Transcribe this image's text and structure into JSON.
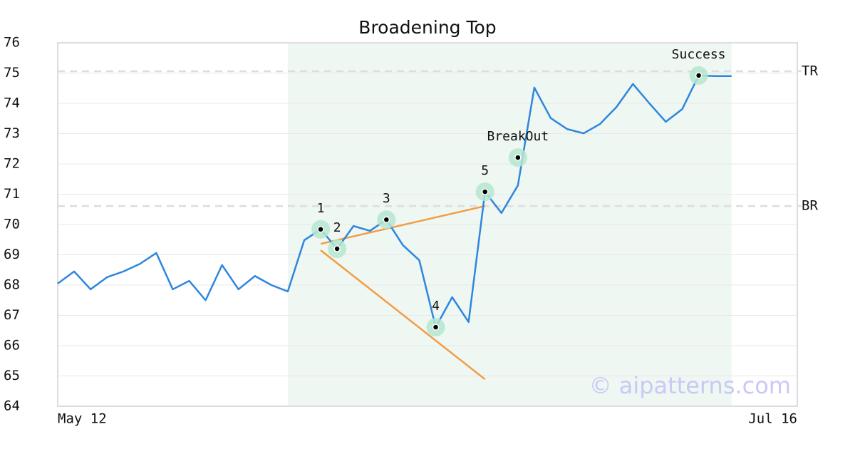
{
  "chart_data": {
    "type": "line",
    "title": "Broadening Top",
    "categories": [
      "May 12",
      null,
      null,
      null,
      null,
      null,
      null,
      null,
      null,
      null,
      null,
      null,
      null,
      null,
      null,
      null,
      null,
      null,
      null,
      null,
      null,
      null,
      null,
      null,
      null,
      null,
      null,
      null,
      null,
      null,
      null,
      null,
      null,
      null,
      null,
      null,
      null,
      null,
      null,
      null,
      null,
      null,
      null,
      null,
      null,
      "Jul 16"
    ],
    "values": [
      68.05,
      68.45,
      67.86,
      68.26,
      68.45,
      68.7,
      69.06,
      67.86,
      68.14,
      67.5,
      68.66,
      67.86,
      68.3,
      68.0,
      67.79,
      69.48,
      69.84,
      69.2,
      69.95,
      69.79,
      70.16,
      69.32,
      68.82,
      66.61,
      67.6,
      66.78,
      71.08,
      70.38,
      71.29,
      74.52,
      73.51,
      73.15,
      73.01,
      73.32,
      73.88,
      74.64,
      74.0,
      73.39,
      73.81,
      74.92,
      74.9,
      74.9,
      null,
      null,
      null,
      null
    ],
    "color": "#2e86de",
    "ylim": [
      64,
      76
    ],
    "yticks": [
      64,
      65,
      66,
      67,
      68,
      69,
      70,
      71,
      72,
      73,
      74,
      75,
      76
    ],
    "grid": true,
    "highlight": {
      "from": 14,
      "to": 41,
      "color": "#eef7f2"
    },
    "reference_lines": [
      {
        "label": "TR",
        "value": 75.06
      },
      {
        "label": "BR",
        "value": 70.61
      }
    ],
    "trend_lines": [
      {
        "x": [
          16,
          26
        ],
        "y": [
          69.36,
          70.61
        ],
        "color": "#f39c44"
      },
      {
        "x": [
          16,
          26
        ],
        "y": [
          69.15,
          64.89
        ],
        "color": "#f39c44"
      }
    ],
    "markers": [
      {
        "label": "1",
        "x": 16,
        "y": 69.84
      },
      {
        "label": "2",
        "x": 17,
        "y": 69.2
      },
      {
        "label": "3",
        "x": 20,
        "y": 70.16
      },
      {
        "label": "4",
        "x": 23,
        "y": 66.61
      },
      {
        "label": "5",
        "x": 26,
        "y": 71.08
      },
      {
        "label": "BreakOut",
        "x": 28,
        "y": 72.21
      },
      {
        "label": "Success",
        "x": 39,
        "y": 74.92
      }
    ],
    "watermark": "© aipatterns.com"
  }
}
